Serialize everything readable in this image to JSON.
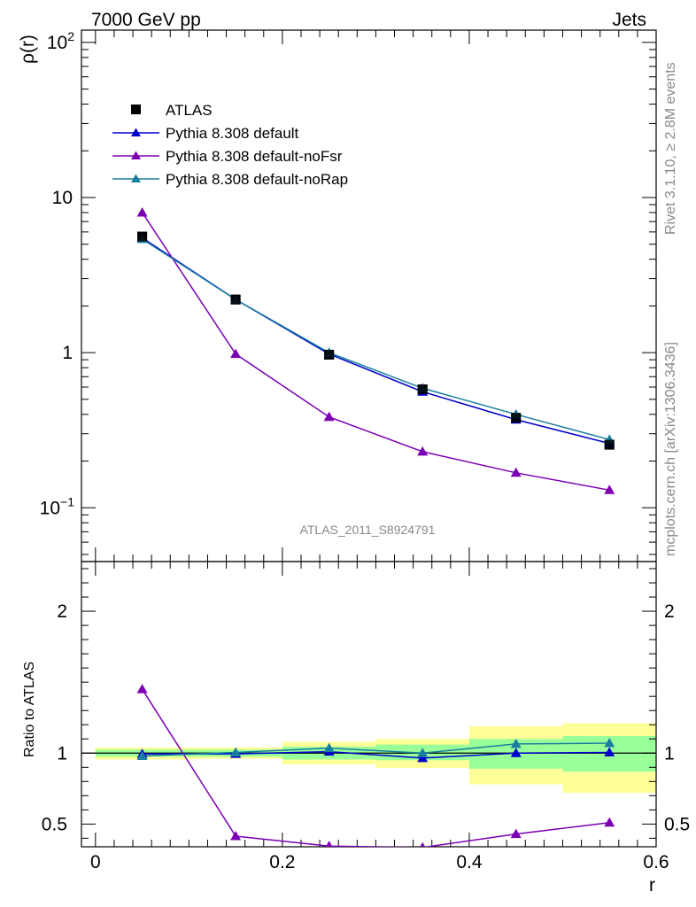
{
  "header": {
    "left": "7000 GeV pp",
    "right": "Jets"
  },
  "side": {
    "rivet": "Rivet 3.1.10, ≥ 2.8M events",
    "mcplots": "mcplots.cern.ch [arXiv:1306.3436]"
  },
  "analysis_label": "ATLAS_2011_S8924791",
  "chart_data": [
    {
      "type": "line",
      "panel": "main",
      "ylabel": "ρ(r)",
      "yscale": "log",
      "ylim": [
        0.045,
        120
      ],
      "xlim": [
        -0.015,
        0.6
      ],
      "yticks": [
        {
          "value": 100,
          "base": "10",
          "exp": "2"
        },
        {
          "value": 10,
          "base": "10",
          "exp": ""
        },
        {
          "value": 1,
          "base": "1",
          "exp": ""
        },
        {
          "value": 0.1,
          "base": "10",
          "exp": "−1"
        }
      ],
      "x": [
        0.05,
        0.15,
        0.25,
        0.35,
        0.45,
        0.55
      ],
      "legend_position": "top-left",
      "series": [
        {
          "name": "ATLAS",
          "marker": "square",
          "color": "#000000",
          "values": [
            5.6,
            2.2,
            0.97,
            0.58,
            0.38,
            0.255
          ],
          "xerr": 0.05
        },
        {
          "name": "Pythia 8.308 default",
          "marker": "triangle",
          "color": "#0000cc",
          "values": [
            5.5,
            2.2,
            0.98,
            0.56,
            0.37,
            0.26
          ]
        },
        {
          "name": "Pythia 8.308 default-noFsr",
          "marker": "triangle",
          "color": "#7b00b4",
          "values": [
            8.0,
            0.98,
            0.385,
            0.23,
            0.168,
            0.13
          ]
        },
        {
          "name": "Pythia 8.308 default-noRap",
          "marker": "triangle",
          "color": "#1a7f9e",
          "values": [
            5.4,
            2.2,
            1.0,
            0.59,
            0.4,
            0.275
          ]
        }
      ]
    },
    {
      "type": "line",
      "panel": "ratio",
      "ylabel": "Ratio to ATLAS",
      "xlabel": "r",
      "ylim": [
        0.34,
        2.35
      ],
      "xlim": [
        -0.015,
        0.6
      ],
      "yticks": [
        "0.5",
        "1",
        "2"
      ],
      "xticks": [
        "0",
        "0.2",
        "0.4",
        "0.6"
      ],
      "x": [
        0.05,
        0.15,
        0.25,
        0.35,
        0.45,
        0.55
      ],
      "bands": {
        "edges": [
          0,
          0.1,
          0.2,
          0.3,
          0.4,
          0.5,
          0.6
        ],
        "yellow_lo": [
          0.955,
          0.96,
          0.92,
          0.895,
          0.78,
          0.72
        ],
        "yellow_hi": [
          1.04,
          1.04,
          1.08,
          1.1,
          1.19,
          1.21
        ],
        "green_lo": [
          0.975,
          0.975,
          0.955,
          0.95,
          0.89,
          0.87
        ],
        "green_hi": [
          1.025,
          1.025,
          1.045,
          1.06,
          1.1,
          1.12
        ]
      },
      "series": [
        {
          "name": "Pythia 8.308 default",
          "color": "#0000cc",
          "values": [
            0.995,
            0.995,
            1.01,
            0.965,
            1.0,
            1.005
          ]
        },
        {
          "name": "Pythia 8.308 default-noFsr",
          "color": "#7b00b4",
          "values": [
            1.45,
            0.415,
            0.345,
            0.335,
            0.43,
            0.51
          ]
        },
        {
          "name": "Pythia 8.308 default-noRap",
          "color": "#1a7f9e",
          "values": [
            0.98,
            1.005,
            1.035,
            1.0,
            1.065,
            1.07
          ]
        }
      ]
    }
  ]
}
